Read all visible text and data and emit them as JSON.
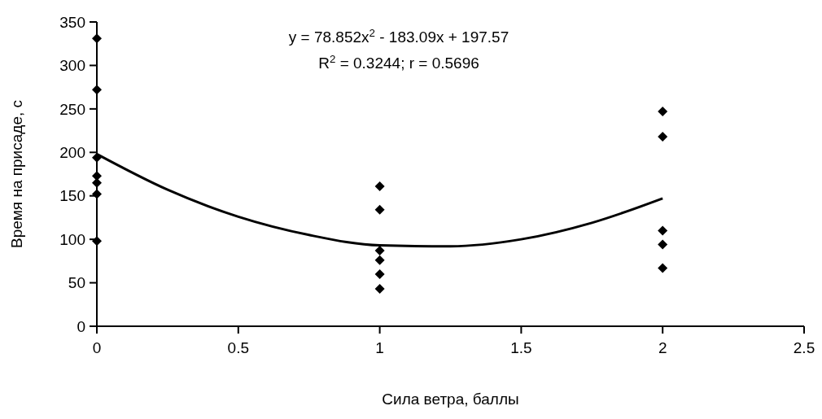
{
  "chart_data": {
    "type": "scatter",
    "xlabel": "Сила ветра, баллы",
    "ylabel": "Время на присаде, с",
    "annotations": [
      "y = 78.852x$^{2}$ - 183.09x + 197.57",
      "R$^{2}$ = 0.3244; r = 0.5696"
    ],
    "series": [
      {
        "color": "#000000",
        "marker": "diamond",
        "x": [
          0,
          0,
          0,
          0,
          0,
          0,
          0,
          1,
          1,
          1,
          1,
          1,
          1,
          2,
          2,
          2,
          2,
          2
        ],
        "values": [
          331,
          272,
          194,
          173,
          165,
          152,
          98,
          161,
          134,
          87,
          76,
          60,
          43,
          247,
          218,
          110,
          94,
          67
        ]
      },
      {
        "type": "line",
        "color": "#000000",
        "marker": "none",
        "line_style": "solid",
        "x": [
          0,
          0.25,
          0.5,
          0.75,
          1,
          1.25,
          1.5,
          1.75,
          2
        ],
        "values": [
          198,
          157,
          126,
          105,
          93,
          92,
          100,
          119,
          147
        ]
      }
    ],
    "xlim": [
      0,
      2.5
    ],
    "xticks": [
      0,
      0.5,
      1,
      1.5,
      2,
      2.5
    ],
    "ylim": [
      0,
      350
    ],
    "yticks": [
      0,
      50,
      100,
      150,
      200,
      250,
      300,
      350
    ],
    "grid": false
  }
}
